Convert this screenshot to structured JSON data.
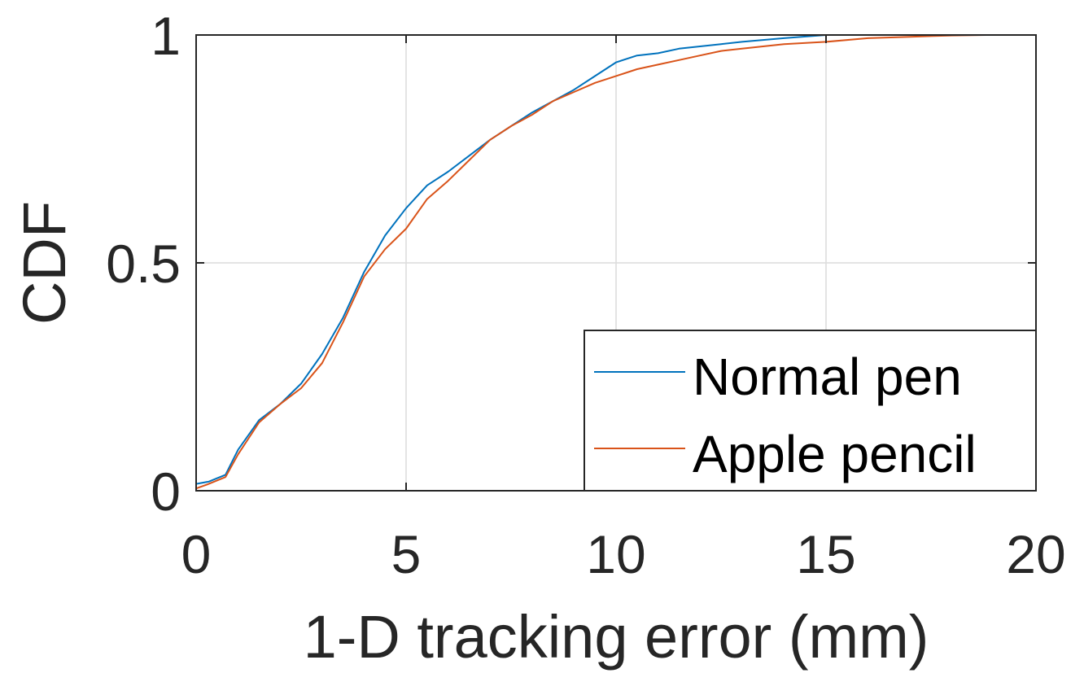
{
  "chart_data": {
    "type": "line",
    "title": "",
    "xlabel": "1-D tracking error (mm)",
    "ylabel": "CDF",
    "xlim": [
      0,
      20
    ],
    "ylim": [
      0,
      1
    ],
    "xticks": [
      0,
      5,
      10,
      15,
      20
    ],
    "xtick_labels": [
      "0",
      "5",
      "10",
      "15",
      "20"
    ],
    "yticks": [
      0,
      0.5,
      1
    ],
    "ytick_labels": [
      "0",
      "0.5",
      "1"
    ],
    "grid": true,
    "legend_position": "bottom-right",
    "series": [
      {
        "name": "Normal pen",
        "color": "#0072BD",
        "x": [
          0,
          0.3,
          0.7,
          1.0,
          1.5,
          2.0,
          2.5,
          3.0,
          3.5,
          4.0,
          4.5,
          5.0,
          5.5,
          6.0,
          6.5,
          7.0,
          7.5,
          8.0,
          8.5,
          9.0,
          9.5,
          10.0,
          10.5,
          11.0,
          11.5,
          12.0,
          12.5,
          13.0,
          14.0,
          15.0,
          16.0,
          17.0
        ],
        "y": [
          0.015,
          0.02,
          0.035,
          0.09,
          0.155,
          0.19,
          0.235,
          0.3,
          0.38,
          0.48,
          0.56,
          0.62,
          0.67,
          0.7,
          0.735,
          0.77,
          0.8,
          0.83,
          0.855,
          0.88,
          0.91,
          0.94,
          0.955,
          0.96,
          0.97,
          0.975,
          0.98,
          0.985,
          0.993,
          1.0,
          1.0,
          1.0
        ]
      },
      {
        "name": "Apple pencil",
        "color": "#D95319",
        "x": [
          0,
          0.3,
          0.7,
          1.0,
          1.5,
          2.0,
          2.5,
          3.0,
          3.5,
          4.0,
          4.5,
          5.0,
          5.5,
          6.0,
          6.5,
          7.0,
          7.5,
          8.0,
          8.5,
          9.0,
          9.5,
          10.0,
          10.5,
          11.0,
          11.5,
          12.0,
          12.5,
          13.0,
          14.0,
          15.0,
          16.0,
          17.0,
          18.0,
          18.8
        ],
        "y": [
          0.005,
          0.015,
          0.03,
          0.08,
          0.15,
          0.19,
          0.225,
          0.28,
          0.37,
          0.47,
          0.53,
          0.575,
          0.64,
          0.68,
          0.725,
          0.77,
          0.8,
          0.825,
          0.855,
          0.875,
          0.895,
          0.91,
          0.925,
          0.935,
          0.945,
          0.955,
          0.965,
          0.97,
          0.98,
          0.985,
          0.993,
          0.996,
          0.999,
          1.0
        ]
      }
    ]
  }
}
